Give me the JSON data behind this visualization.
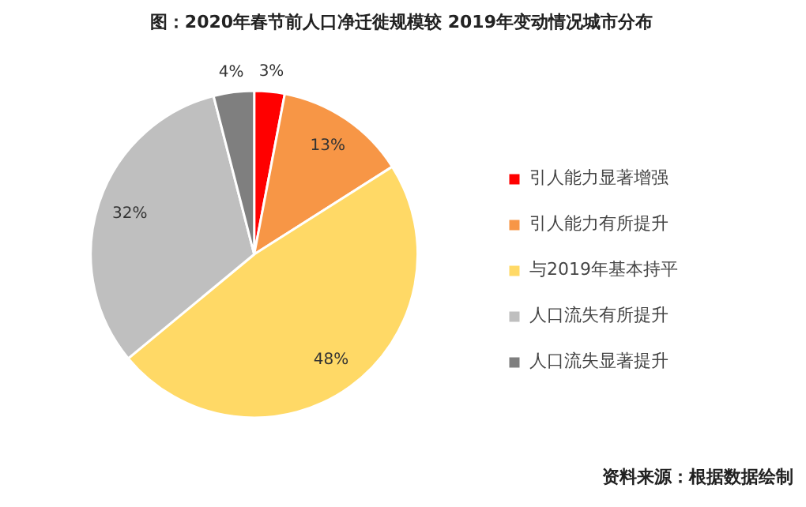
{
  "chart_data": {
    "type": "pie",
    "title": "图：2020年春节前人口净迁徙规模较 2019年变动情况城市分布",
    "categories": [
      "引人能力显著增强",
      "引人能力有所提升",
      "与2019年基本持平",
      "人口流失有所提升",
      "人口流失显著提升"
    ],
    "values": [
      3,
      13,
      48,
      32,
      4
    ],
    "colors": [
      "#ff0000",
      "#f79646",
      "#ffd966",
      "#bfbfbf",
      "#7f7f7f"
    ],
    "value_labels": [
      "3%",
      "13%",
      "48%",
      "32%",
      "4%"
    ],
    "legend": "right",
    "annotations": [
      "资料来源：根据数据绘制"
    ]
  }
}
